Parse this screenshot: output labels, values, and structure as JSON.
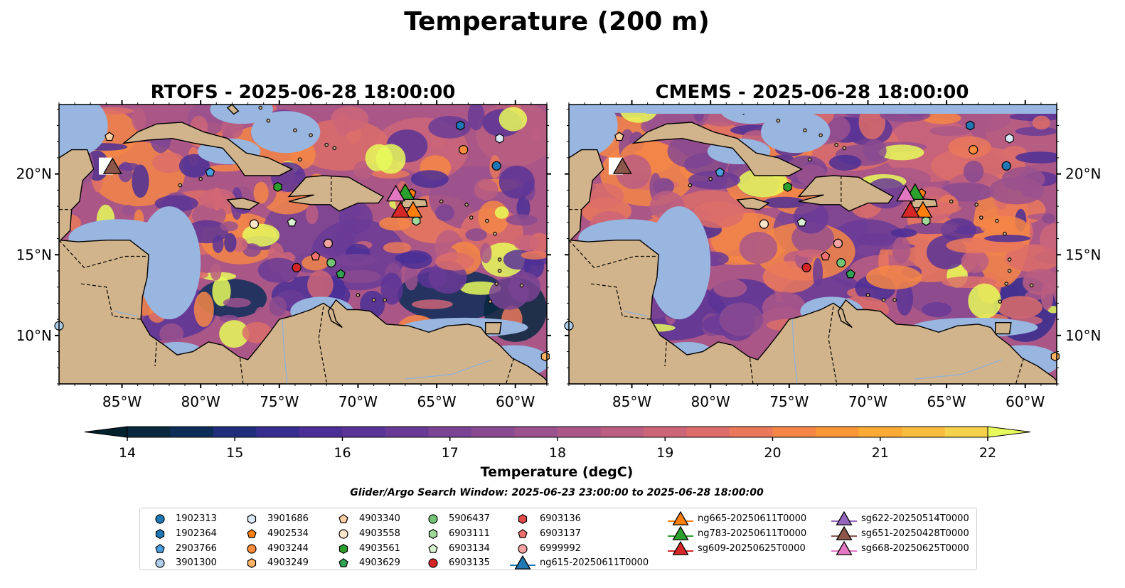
{
  "suptitle": "Temperature (200 m)",
  "panels": [
    {
      "id": "rtofs",
      "title": "RTOFS - 2025-06-28 18:00:00",
      "variant": "rtofs"
    },
    {
      "id": "cmems",
      "title": "CMEMS - 2025-06-28 18:00:00",
      "variant": "cmems"
    }
  ],
  "map": {
    "lon_range": [
      -89,
      -58
    ],
    "lat_range": [
      7,
      24.3
    ],
    "lon_ticks": [
      -85,
      -80,
      -75,
      -70,
      -65,
      -60
    ],
    "lon_tick_labels": [
      "85°W",
      "80°W",
      "75°W",
      "70°W",
      "65°W",
      "60°W"
    ],
    "lat_ticks": [
      10,
      15,
      20
    ],
    "lat_tick_labels": [
      "10°N",
      "15°N",
      "20°N"
    ],
    "land_color": "#d2b48c",
    "shelf_color": "#98b6e0"
  },
  "colorbar": {
    "label": "Temperature (degC)",
    "vmin": 14,
    "vmax": 22,
    "step": 0.5,
    "ticks": [
      "14",
      "15",
      "16",
      "17",
      "18",
      "19",
      "20",
      "21",
      "22"
    ],
    "under_color": "#03202e",
    "over_color": "#e8fa5b",
    "colors": [
      "#082840",
      "#0d2d59",
      "#212e7b",
      "#362d8f",
      "#4b2f96",
      "#5b3497",
      "#6a3b96",
      "#7a4394",
      "#8a4a91",
      "#9a518d",
      "#aa5788",
      "#bb5e81",
      "#cc6578",
      "#dc6d6a",
      "#ea785a",
      "#f48647",
      "#f99738",
      "#fbaa35",
      "#f9bd3e",
      "#f5d24a"
    ]
  },
  "search_window": "Glider/Argo Search Window: 2025-06-23 23:00:00 to 2025-06-28 18:00:00",
  "argo_floats": [
    {
      "id": "1902313",
      "marker": "circle",
      "color": "#1f77b4",
      "lon": -61.2,
      "lat": 20.5
    },
    {
      "id": "1902364",
      "marker": "hexagon",
      "color": "#1f77b4",
      "lon": -63.5,
      "lat": 23.0
    },
    {
      "id": "2903766",
      "marker": "pentagon",
      "color": "#4a9fe0",
      "lon": -79.4,
      "lat": 20.1
    },
    {
      "id": "3901300",
      "marker": "circle",
      "color": "#aecde8",
      "lon": -89.0,
      "lat": 10.6
    },
    {
      "id": "3901686",
      "marker": "hexagon",
      "color": "#dbe9f6",
      "lon": -61.0,
      "lat": 22.2
    },
    {
      "id": "4902534",
      "marker": "pentagon",
      "color": "#ff7f0e",
      "lon": -66.6,
      "lat": 18.8
    },
    {
      "id": "4903244",
      "marker": "circle",
      "color": "#fd8d3c",
      "lon": -63.3,
      "lat": 21.5
    },
    {
      "id": "4903249",
      "marker": "hexagon",
      "color": "#fdb363",
      "lon": -58.1,
      "lat": 8.7
    },
    {
      "id": "4903340",
      "marker": "pentagon",
      "color": "#fdd0a2",
      "lon": -85.8,
      "lat": 22.3
    },
    {
      "id": "4903558",
      "marker": "circle",
      "color": "#fde6cc",
      "lon": -76.6,
      "lat": 16.9
    },
    {
      "id": "4903561",
      "marker": "hexagon",
      "color": "#2ca02c",
      "lon": -75.1,
      "lat": 19.2
    },
    {
      "id": "4903629",
      "marker": "pentagon",
      "color": "#31a354",
      "lon": -71.1,
      "lat": 13.8
    },
    {
      "id": "5906437",
      "marker": "circle",
      "color": "#74c476",
      "lon": -71.7,
      "lat": 14.5
    },
    {
      "id": "6903111",
      "marker": "hexagon",
      "color": "#a1d99b",
      "lon": -66.3,
      "lat": 17.1
    },
    {
      "id": "6903134",
      "marker": "pentagon",
      "color": "#d9f0d3",
      "lon": -74.2,
      "lat": 17.0
    },
    {
      "id": "6903135",
      "marker": "circle",
      "color": "#d62728",
      "lon": -73.9,
      "lat": 14.2
    },
    {
      "id": "6903136",
      "marker": "hexagon",
      "color": "#e34a4a",
      "lon": -71.9,
      "lat": 15.7
    },
    {
      "id": "6903137",
      "marker": "pentagon",
      "color": "#f07070",
      "lon": -72.7,
      "lat": 14.9
    },
    {
      "id": "6999992",
      "marker": "circle",
      "color": "#f4a3a3",
      "lon": -71.9,
      "lat": 15.7
    }
  ],
  "gliders": [
    {
      "id": "ng615-20250611T0000",
      "color": "#1f77b4",
      "lon": null,
      "lat": null
    },
    {
      "id": "ng665-20250611T0000",
      "color": "#ff7f0e",
      "lon": -66.5,
      "lat": 17.7
    },
    {
      "id": "ng783-20250611T0000",
      "color": "#2ca02c",
      "lon": -67.0,
      "lat": 18.8
    },
    {
      "id": "sg609-20250625T0000",
      "color": "#d62728",
      "lon": -67.3,
      "lat": 17.7
    },
    {
      "id": "sg622-20250514T0000",
      "color": "#9467bd",
      "lon": null,
      "lat": null
    },
    {
      "id": "sg651-20250428T0000",
      "color": "#8c564b",
      "lon": -85.6,
      "lat": 20.4
    },
    {
      "id": "sg668-20250625T0000",
      "color": "#e377c2",
      "lon": -67.6,
      "lat": 18.7
    }
  ]
}
